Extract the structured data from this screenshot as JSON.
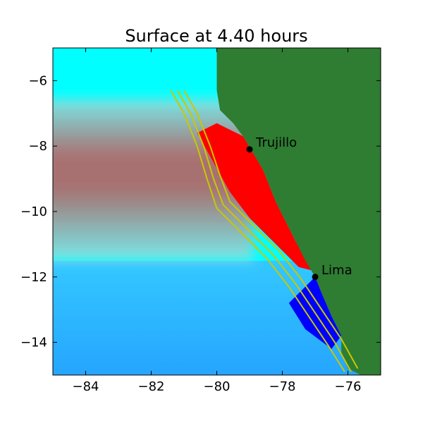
{
  "chart_data": {
    "type": "heatmap",
    "title": "Surface at 4.40 hours",
    "xlabel": "",
    "ylabel": "",
    "xlim": [
      -85,
      -75
    ],
    "ylim": [
      -15,
      -5
    ],
    "x_ticks": [
      -84,
      -82,
      -80,
      -78,
      -76
    ],
    "y_ticks": [
      -6,
      -8,
      -10,
      -12,
      -14
    ],
    "x_tick_labels": [
      "−84",
      "−82",
      "−80",
      "−78",
      "−76"
    ],
    "y_tick_labels": [
      "−6",
      "−8",
      "−10",
      "−12",
      "−14"
    ],
    "grid": false,
    "legend": "none",
    "colors": {
      "land": "#2e7d32",
      "water_background": "#00ffff",
      "elevated_surface": "#ff0000",
      "depressed_surface": "#0000ff",
      "trench_contours": "#c8c800",
      "city_marker": "#000000"
    },
    "cities": [
      {
        "name": "Trujillo",
        "lon": -79.0,
        "lat": -8.1
      },
      {
        "name": "Lima",
        "lon": -77.0,
        "lat": -12.0
      }
    ],
    "coastline": [
      [
        -80.0,
        -5.0
      ],
      [
        -80.0,
        -6.3
      ],
      [
        -79.9,
        -6.9
      ],
      [
        -79.5,
        -7.3
      ],
      [
        -79.2,
        -7.7
      ],
      [
        -78.9,
        -8.2
      ],
      [
        -78.6,
        -8.7
      ],
      [
        -78.4,
        -9.2
      ],
      [
        -78.2,
        -9.7
      ],
      [
        -77.9,
        -10.3
      ],
      [
        -77.6,
        -10.9
      ],
      [
        -77.3,
        -11.5
      ],
      [
        -77.0,
        -12.0
      ],
      [
        -76.8,
        -12.5
      ],
      [
        -76.5,
        -13.2
      ],
      [
        -76.2,
        -13.8
      ],
      [
        -76.2,
        -14.3
      ],
      [
        -76.0,
        -14.8
      ],
      [
        -75.6,
        -15.0
      ]
    ],
    "trench_contours": [
      [
        [
          -81.4,
          -6.3
        ],
        [
          -81.0,
          -7.0
        ],
        [
          -80.6,
          -8.0
        ],
        [
          -80.3,
          -9.0
        ],
        [
          -80.0,
          -9.9
        ],
        [
          -79.3,
          -10.6
        ],
        [
          -78.5,
          -11.4
        ],
        [
          -77.8,
          -12.3
        ],
        [
          -77.2,
          -13.2
        ],
        [
          -76.6,
          -14.1
        ],
        [
          -76.1,
          -14.9
        ]
      ],
      [
        [
          -81.2,
          -6.3
        ],
        [
          -80.8,
          -7.0
        ],
        [
          -80.4,
          -8.0
        ],
        [
          -80.1,
          -9.0
        ],
        [
          -79.8,
          -9.8
        ],
        [
          -79.1,
          -10.5
        ],
        [
          -78.3,
          -11.3
        ],
        [
          -77.6,
          -12.2
        ],
        [
          -77.0,
          -13.1
        ],
        [
          -76.4,
          -14.0
        ],
        [
          -75.9,
          -14.9
        ]
      ],
      [
        [
          -81.0,
          -6.3
        ],
        [
          -80.6,
          -7.0
        ],
        [
          -80.2,
          -8.0
        ],
        [
          -79.9,
          -8.9
        ],
        [
          -79.6,
          -9.7
        ],
        [
          -78.9,
          -10.4
        ],
        [
          -78.1,
          -11.2
        ],
        [
          -77.4,
          -12.1
        ],
        [
          -76.8,
          -13.0
        ],
        [
          -76.2,
          -13.9
        ],
        [
          -75.7,
          -14.8
        ]
      ]
    ],
    "elevated_band_west": {
      "lon_range": [
        -85,
        -79.5
      ],
      "lat_range": [
        -11.5,
        -7.0
      ],
      "center_lat": -9.3
    },
    "red_coastal_band": [
      [
        -80.0,
        -7.3
      ],
      [
        -79.2,
        -7.7
      ],
      [
        -78.6,
        -8.7
      ],
      [
        -78.2,
        -9.7
      ],
      [
        -77.6,
        -10.9
      ],
      [
        -77.1,
        -11.8
      ],
      [
        -77.5,
        -11.7
      ],
      [
        -78.3,
        -10.9
      ],
      [
        -79.0,
        -10.2
      ],
      [
        -79.6,
        -9.4
      ],
      [
        -80.1,
        -8.5
      ],
      [
        -80.6,
        -7.6
      ]
    ],
    "blue_coastal_band": [
      [
        -77.0,
        -12.0
      ],
      [
        -76.8,
        -12.5
      ],
      [
        -76.5,
        -13.2
      ],
      [
        -76.2,
        -13.8
      ],
      [
        -76.5,
        -14.2
      ],
      [
        -77.3,
        -13.6
      ],
      [
        -77.8,
        -12.8
      ]
    ]
  }
}
